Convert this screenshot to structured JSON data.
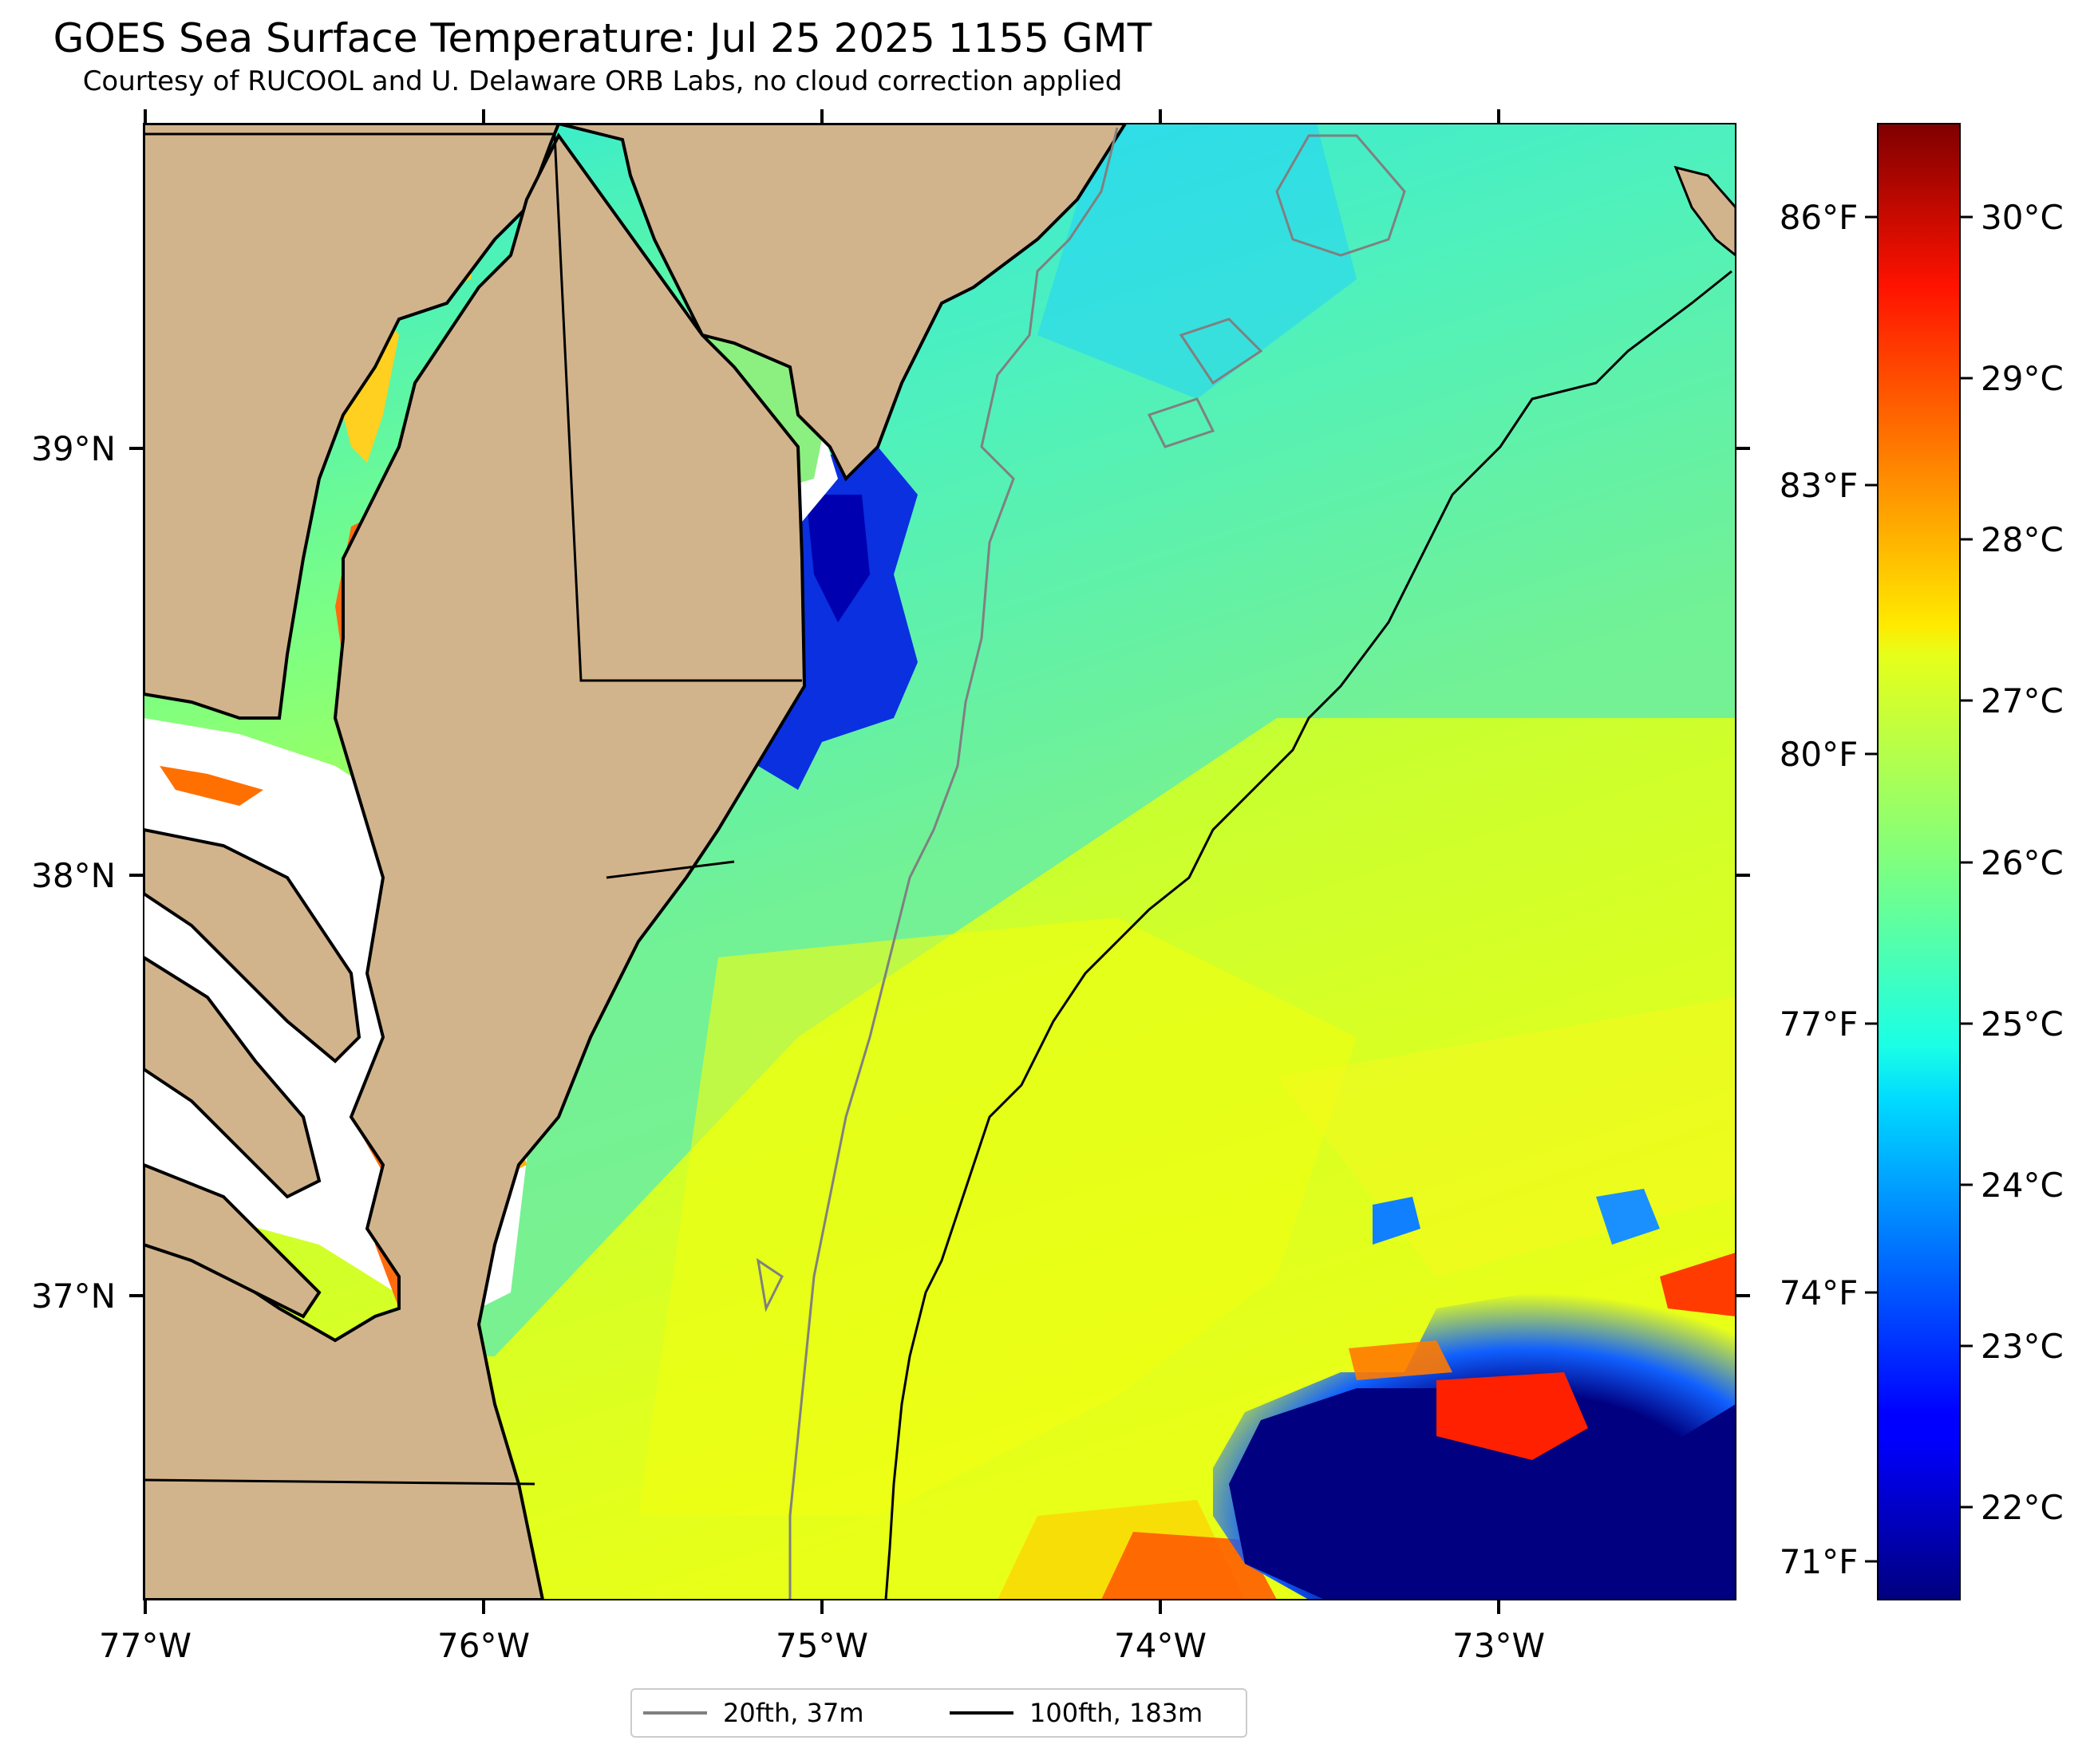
{
  "title": "GOES Sea Surface Temperature: Jul 25 2025 1155 GMT",
  "subtitle": "Courtesy of RUCOOL and U. Delaware ORB Labs, no cloud correction applied",
  "map": {
    "extent": {
      "lon": [
        -77.0,
        -72.3
      ],
      "lat": [
        36.3,
        39.78
      ]
    },
    "lon_ticks": [
      "77°W",
      "76°W",
      "75°W",
      "74°W",
      "73°W"
    ],
    "lat_ticks": [
      "39°N",
      "38°N",
      "37°N"
    ],
    "land_color": "#d2b48c",
    "no_data_color": "#ffffff",
    "colormap": "jet"
  },
  "colorbar": {
    "range_c": [
      21.5,
      30.5
    ],
    "celsius_ticks": [
      "22°C",
      "23°C",
      "24°C",
      "25°C",
      "26°C",
      "27°C",
      "28°C",
      "29°C",
      "30°C"
    ],
    "fahrenheit_ticks": [
      "71°F",
      "74°F",
      "77°F",
      "80°F",
      "83°F",
      "86°F"
    ]
  },
  "legend": {
    "items": [
      {
        "label": "20fth, 37m",
        "color": "#808080"
      },
      {
        "label": "100fth, 183m",
        "color": "#000000"
      }
    ]
  }
}
